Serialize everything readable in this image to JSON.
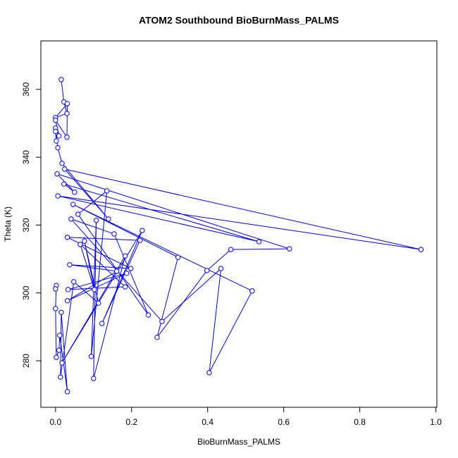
{
  "chart_data": {
    "type": "line",
    "title": "ATOM2 Southbound BioBurnMass_PALMS",
    "xlabel": "BioBurnMass_PALMS",
    "ylabel": "Theta (K)",
    "color": "#0000ff",
    "x": [
      0.015,
      0.022,
      0.03,
      0.0,
      0.031,
      0.03,
      0.0,
      0.009,
      0.0,
      0.002,
      0.0,
      0.006,
      0.017,
      0.139,
      0.024,
      0.961,
      0.006,
      0.535,
      0.022,
      0.05,
      0.004,
      0.615,
      0.461,
      0.398,
      0.267,
      0.322,
      0.046,
      0.517,
      0.404,
      0.435,
      0.28,
      0.041,
      0.154,
      0.244,
      0.059,
      0.135,
      0.094,
      0.107,
      0.1,
      0.183,
      0.017,
      0.228,
      0.122,
      0.222,
      0.031,
      0.198,
      0.037,
      0.161,
      0.031,
      0.187,
      0.033,
      0.183,
      0.065,
      0.102,
      0.076,
      0.113,
      0.048,
      0.013,
      0.015,
      0.031,
      0.011,
      0.009,
      0.002,
      0.0,
      0.002,
      0.0
    ],
    "y": [
      362.9,
      356.3,
      352.9,
      351.7,
      355.8,
      345.9,
      350.9,
      346.3,
      348.6,
      344.8,
      347.6,
      342.8,
      338.2,
      321.8,
      336.5,
      312.8,
      328.6,
      315.1,
      332.1,
      329.7,
      335.1,
      313.0,
      312.8,
      306.6,
      286.9,
      310.5,
      326.1,
      300.6,
      276.5,
      307.2,
      291.6,
      321.8,
      317.4,
      293.5,
      323.2,
      330.1,
      281.3,
      321.4,
      274.8,
      310.9,
      279.4,
      318.4,
      291.0,
      315.5,
      316.4,
      307.2,
      308.3,
      306.4,
      297.7,
      305.8,
      301.0,
      301.8,
      314.3,
      301.0,
      315.3,
      297.0,
      303.3,
      275.2,
      294.3,
      270.9,
      287.5,
      283.1,
      281.0,
      295.4,
      302.2,
      301.2
    ],
    "xlim": [
      -0.0386,
      1.0026
    ],
    "ylim": [
      266.3,
      374.3
    ],
    "xticks": [
      {
        "value": 0,
        "label": "0.0"
      },
      {
        "value": 0.2,
        "label": "0.2"
      },
      {
        "value": 0.4,
        "label": "0.4"
      },
      {
        "value": 0.6,
        "label": "0.6"
      },
      {
        "value": 0.8,
        "label": "0.8"
      },
      {
        "value": 1,
        "label": "1.0"
      }
    ],
    "yticks": [
      280,
      300,
      320,
      340,
      360
    ]
  }
}
